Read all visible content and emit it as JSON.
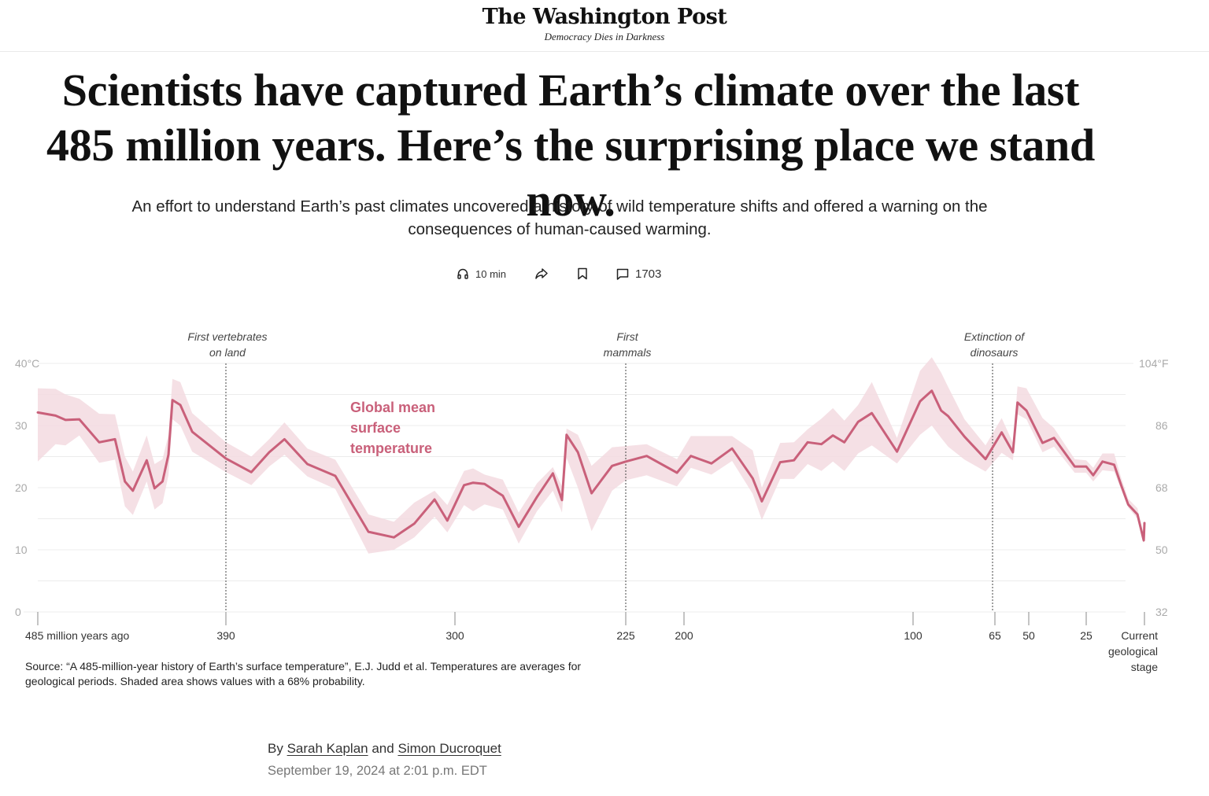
{
  "masthead": {
    "logo": "The Washington Post",
    "tagline": "Democracy Dies in Darkness"
  },
  "article": {
    "headline": "Scientists have captured Earth’s climate over the last 485 million years. Here’s the surprising place we stand now.",
    "dek": "An effort to understand Earth’s past climates uncovered a history of wild temperature shifts and offered a warning on the consequences of human-caused warming.",
    "utility": {
      "listen_icon": "headphones-icon",
      "listen_label": "10 min",
      "share_icon": "share-arrow-icon",
      "save_icon": "bookmark-icon",
      "comments_icon": "comment-bubble-icon",
      "comments_count": "1703"
    },
    "source_note": "Source: “A 485-million-year history of Earth’s surface temperature”, E.J. Judd et al. Temperatures are averages for geological periods. Shaded area shows values with a 68% probability.",
    "byline": {
      "prefix": "By",
      "authors": [
        "Sarah Kaplan",
        "Simon Ducroquet"
      ],
      "joiner": "and",
      "date": "September 19, 2024 at 2:01 p.m. EDT"
    }
  },
  "chart_data": {
    "type": "area",
    "title": "",
    "xlabel": "Million years ago",
    "ylabel": "Global mean surface temperature",
    "x_reversed": true,
    "x_scale": "piecewise (geological time)",
    "xlim": [
      485,
      0
    ],
    "ylim": [
      0,
      40
    ],
    "grid": true,
    "x_ticks": [
      {
        "value": 485,
        "label": "485 million years ago"
      },
      {
        "value": 390,
        "label": "390"
      },
      {
        "value": 300,
        "label": "300"
      },
      {
        "value": 225,
        "label": "225"
      },
      {
        "value": 200,
        "label": "200"
      },
      {
        "value": 100,
        "label": "100"
      },
      {
        "value": 65,
        "label": "65"
      },
      {
        "value": 50,
        "label": "50"
      },
      {
        "value": 25,
        "label": "25"
      },
      {
        "value": 0,
        "label": "Current geological stage"
      }
    ],
    "y_ticks_left": [
      {
        "value": 40,
        "label": "40°C"
      },
      {
        "value": 30,
        "label": "30"
      },
      {
        "value": 20,
        "label": "20"
      },
      {
        "value": 10,
        "label": "10"
      },
      {
        "value": 0,
        "label": "0"
      }
    ],
    "y_ticks_right": [
      {
        "value": 40,
        "label": "104°F"
      },
      {
        "value": 30,
        "label": "86"
      },
      {
        "value": 20,
        "label": "68"
      },
      {
        "value": 10,
        "label": "50"
      },
      {
        "value": 0,
        "label": "32"
      }
    ],
    "gridlines": [
      0,
      5,
      10,
      15,
      20,
      25,
      30,
      35,
      40
    ],
    "annotations": [
      {
        "x": 390,
        "label": "First vertebrates on land"
      },
      {
        "x": 225,
        "label": "First mammals"
      },
      {
        "x": 66,
        "label": "Extinction of dinosaurs"
      }
    ],
    "series": [
      {
        "name": "Global mean surface temperature",
        "color": "#c9607a",
        "band_color": "#f3dbe1",
        "band_label": "68% probability range",
        "points": [
          {
            "x": 485,
            "y": 32.1,
            "lo": 24.2,
            "hi": 36.0
          },
          {
            "x": 476,
            "y": 31.6,
            "lo": 27.0,
            "hi": 35.9
          },
          {
            "x": 471,
            "y": 30.9,
            "lo": 26.8,
            "hi": 35.0
          },
          {
            "x": 464,
            "y": 31.0,
            "lo": 28.4,
            "hi": 34.3
          },
          {
            "x": 454,
            "y": 27.3,
            "lo": 24.0,
            "hi": 31.9
          },
          {
            "x": 446,
            "y": 27.8,
            "lo": 24.5,
            "hi": 31.8
          },
          {
            "x": 441,
            "y": 21.0,
            "lo": 17.0,
            "hi": 25.0
          },
          {
            "x": 437,
            "y": 19.5,
            "lo": 15.6,
            "hi": 22.6
          },
          {
            "x": 430,
            "y": 24.4,
            "lo": 21.0,
            "hi": 28.4
          },
          {
            "x": 426,
            "y": 19.9,
            "lo": 16.5,
            "hi": 23.8
          },
          {
            "x": 422,
            "y": 21.0,
            "lo": 17.5,
            "hi": 24.6
          },
          {
            "x": 419,
            "y": 25.3,
            "lo": 22.0,
            "hi": 28.5
          },
          {
            "x": 417,
            "y": 34.1,
            "lo": 31.0,
            "hi": 37.5
          },
          {
            "x": 413,
            "y": 33.3,
            "lo": 30.0,
            "hi": 37.0
          },
          {
            "x": 407,
            "y": 29.0,
            "lo": 25.8,
            "hi": 32.0
          },
          {
            "x": 390,
            "y": 24.7,
            "lo": 22.5,
            "hi": 27.3
          },
          {
            "x": 380,
            "y": 22.5,
            "lo": 20.4,
            "hi": 25.0
          },
          {
            "x": 373,
            "y": 25.7,
            "lo": 23.4,
            "hi": 27.8
          },
          {
            "x": 367,
            "y": 27.8,
            "lo": 25.3,
            "hi": 30.5
          },
          {
            "x": 358,
            "y": 23.8,
            "lo": 21.8,
            "hi": 26.3
          },
          {
            "x": 347,
            "y": 21.9,
            "lo": 19.8,
            "hi": 24.5
          },
          {
            "x": 334,
            "y": 12.9,
            "lo": 9.4,
            "hi": 15.7
          },
          {
            "x": 324,
            "y": 12.0,
            "lo": 10.0,
            "hi": 14.5
          },
          {
            "x": 316,
            "y": 14.2,
            "lo": 12.0,
            "hi": 17.6
          },
          {
            "x": 308,
            "y": 18.1,
            "lo": 15.3,
            "hi": 19.5
          },
          {
            "x": 303,
            "y": 14.7,
            "lo": 12.8,
            "hi": 17.2
          },
          {
            "x": 296,
            "y": 20.4,
            "lo": 17.2,
            "hi": 22.7
          },
          {
            "x": 292,
            "y": 20.8,
            "lo": 16.2,
            "hi": 23.1
          },
          {
            "x": 287,
            "y": 20.6,
            "lo": 17.3,
            "hi": 22.1
          },
          {
            "x": 279,
            "y": 18.7,
            "lo": 16.5,
            "hi": 21.3
          },
          {
            "x": 272,
            "y": 13.7,
            "lo": 11.0,
            "hi": 16.0
          },
          {
            "x": 264,
            "y": 18.5,
            "lo": 16.2,
            "hi": 20.7
          },
          {
            "x": 257,
            "y": 22.3,
            "lo": 19.5,
            "hi": 23.3
          },
          {
            "x": 253,
            "y": 18.0,
            "lo": 16.0,
            "hi": 20.2
          },
          {
            "x": 251,
            "y": 28.5,
            "lo": 24.8,
            "hi": 29.5
          },
          {
            "x": 246,
            "y": 25.7,
            "lo": 20.0,
            "hi": 28.5
          },
          {
            "x": 240,
            "y": 19.1,
            "lo": 13.0,
            "hi": 23.5
          },
          {
            "x": 231,
            "y": 23.5,
            "lo": 19.5,
            "hi": 26.5
          },
          {
            "x": 225,
            "y": 24.2,
            "lo": 21.2,
            "hi": 26.7
          },
          {
            "x": 216,
            "y": 25.1,
            "lo": 22.0,
            "hi": 27.0
          },
          {
            "x": 203,
            "y": 22.4,
            "lo": 20.2,
            "hi": 24.6
          },
          {
            "x": 197,
            "y": 25.1,
            "lo": 23.2,
            "hi": 28.3
          },
          {
            "x": 188,
            "y": 23.9,
            "lo": 22.1,
            "hi": 28.3
          },
          {
            "x": 179,
            "y": 26.3,
            "lo": 24.3,
            "hi": 28.3
          },
          {
            "x": 170,
            "y": 21.5,
            "lo": 19.0,
            "hi": 26.0
          },
          {
            "x": 166,
            "y": 17.8,
            "lo": 14.8,
            "hi": 20.0
          },
          {
            "x": 158,
            "y": 24.1,
            "lo": 21.4,
            "hi": 27.2
          },
          {
            "x": 152,
            "y": 24.4,
            "lo": 21.4,
            "hi": 27.3
          },
          {
            "x": 146,
            "y": 27.3,
            "lo": 23.8,
            "hi": 29.4
          },
          {
            "x": 140,
            "y": 27.0,
            "lo": 22.7,
            "hi": 31.1
          },
          {
            "x": 135,
            "y": 28.4,
            "lo": 24.2,
            "hi": 32.8
          },
          {
            "x": 130,
            "y": 27.3,
            "lo": 22.7,
            "hi": 30.8
          },
          {
            "x": 124,
            "y": 30.6,
            "lo": 25.5,
            "hi": 33.3
          },
          {
            "x": 118,
            "y": 32.0,
            "lo": 26.8,
            "hi": 37.0
          },
          {
            "x": 107,
            "y": 25.8,
            "lo": 23.9,
            "hi": 28.0
          },
          {
            "x": 97,
            "y": 33.9,
            "lo": 28.5,
            "hi": 38.8
          },
          {
            "x": 92,
            "y": 35.6,
            "lo": 30.0,
            "hi": 41.0
          },
          {
            "x": 88,
            "y": 32.4,
            "lo": 28.0,
            "hi": 38.5
          },
          {
            "x": 85,
            "y": 31.5,
            "lo": 26.6,
            "hi": 36.2
          },
          {
            "x": 78,
            "y": 28.2,
            "lo": 24.5,
            "hi": 31.0
          },
          {
            "x": 69,
            "y": 24.6,
            "lo": 22.6,
            "hi": 26.8
          },
          {
            "x": 62,
            "y": 28.9,
            "lo": 25.6,
            "hi": 31.2
          },
          {
            "x": 57,
            "y": 25.7,
            "lo": 24.4,
            "hi": 27.2
          },
          {
            "x": 55,
            "y": 33.7,
            "lo": 31.8,
            "hi": 36.3
          },
          {
            "x": 51,
            "y": 32.4,
            "lo": 31.0,
            "hi": 36.0
          },
          {
            "x": 44,
            "y": 27.2,
            "lo": 25.7,
            "hi": 31.2
          },
          {
            "x": 39,
            "y": 28.0,
            "lo": 26.6,
            "hi": 29.6
          },
          {
            "x": 30,
            "y": 23.4,
            "lo": 22.4,
            "hi": 24.6
          },
          {
            "x": 25,
            "y": 23.4,
            "lo": 22.4,
            "hi": 24.4
          },
          {
            "x": 22,
            "y": 22.0,
            "lo": 21.0,
            "hi": 23.2
          },
          {
            "x": 18,
            "y": 24.2,
            "lo": 22.8,
            "hi": 25.5
          },
          {
            "x": 13,
            "y": 23.7,
            "lo": 22.6,
            "hi": 25.5
          },
          {
            "x": 10,
            "y": 20.4,
            "lo": 19.7,
            "hi": 21.6
          },
          {
            "x": 7,
            "y": 17.3,
            "lo": 16.8,
            "hi": 18.2
          },
          {
            "x": 3,
            "y": 15.7,
            "lo": 15.0,
            "hi": 16.7
          },
          {
            "x": 0.3,
            "y": 11.5,
            "lo": 11.0,
            "hi": 12.2
          },
          {
            "x": 0,
            "y": 14.3,
            "lo": 13.8,
            "hi": 14.8
          }
        ]
      }
    ],
    "series_label_lines": [
      "Global mean",
      "surface",
      "temperature"
    ]
  }
}
